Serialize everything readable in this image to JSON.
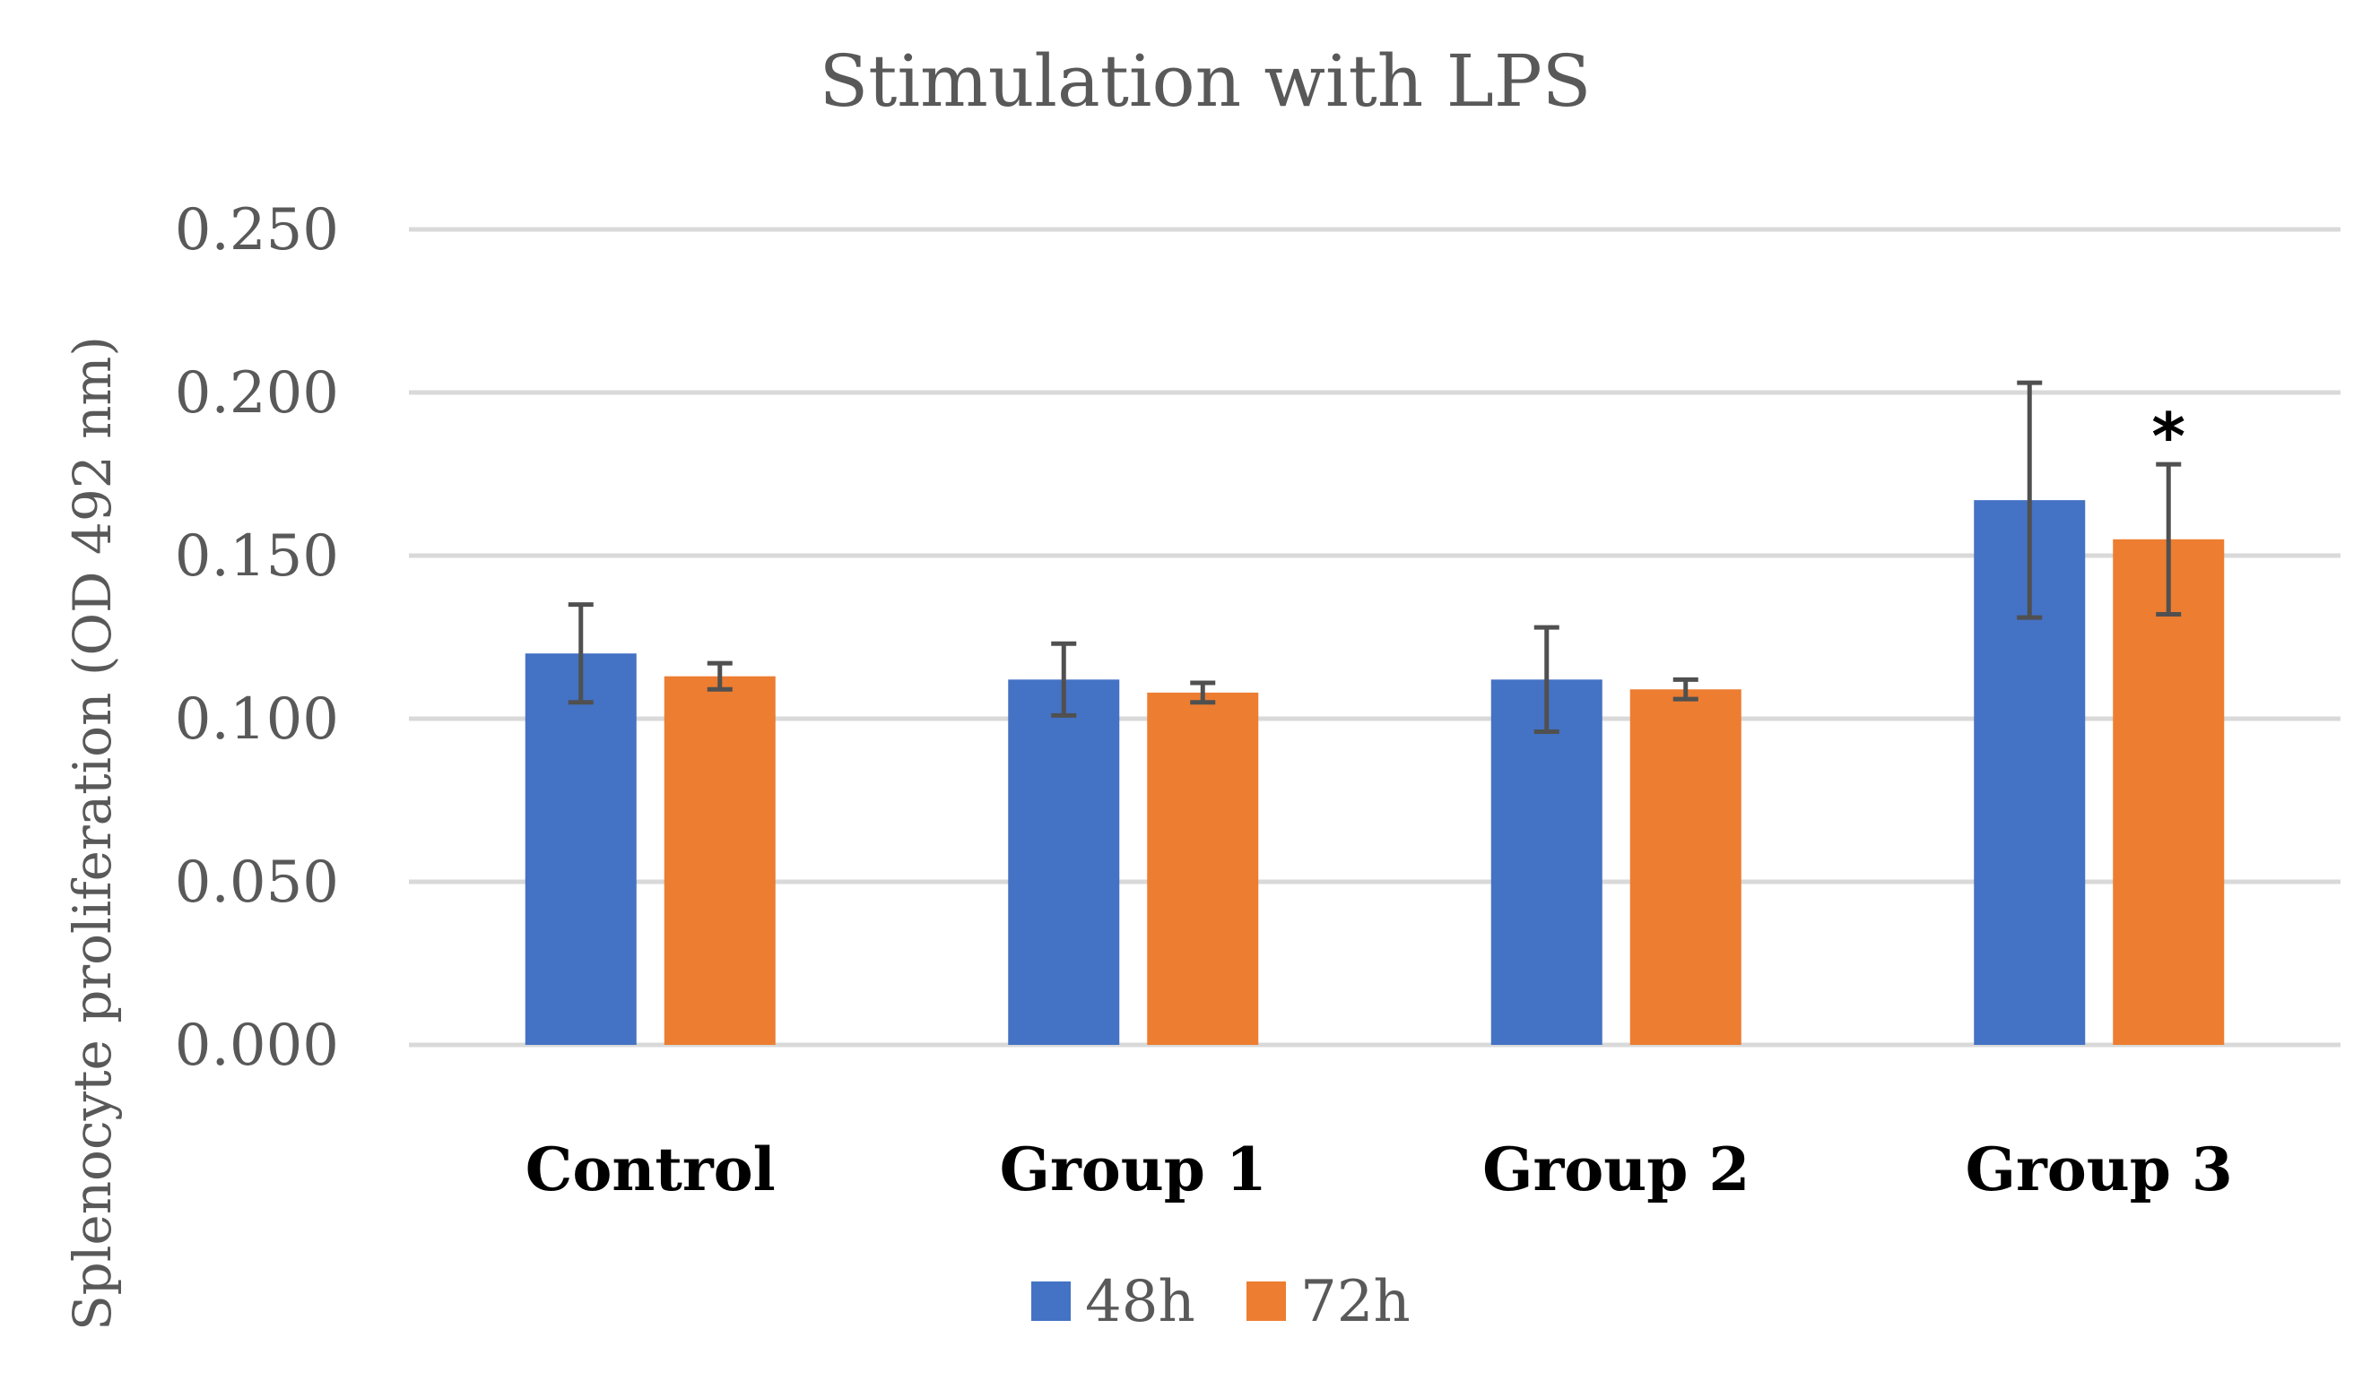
{
  "chart_data": {
    "type": "bar",
    "title": "Stimulation with LPS",
    "xlabel": "",
    "ylabel": "Splenocyte proliferation (OD 492 nm)",
    "categories": [
      "Control",
      "Group 1",
      "Group 2",
      "Group 3"
    ],
    "series": [
      {
        "name": "48h",
        "color": "#4472c4",
        "values": [
          0.12,
          0.112,
          0.112,
          0.167
        ],
        "errors": [
          0.015,
          0.011,
          0.016,
          0.036
        ]
      },
      {
        "name": "72h",
        "color": "#ed7d31",
        "values": [
          0.113,
          0.108,
          0.109,
          0.155
        ],
        "errors": [
          0.004,
          0.003,
          0.003,
          0.023
        ]
      }
    ],
    "ylim": [
      0,
      0.25
    ],
    "yticks": [
      "0.000",
      "0.050",
      "0.100",
      "0.150",
      "0.200",
      "0.250"
    ],
    "grid": true,
    "legend_position": "bottom",
    "annotations": [
      {
        "text": "*",
        "category": "Group 3",
        "series": "72h"
      }
    ]
  }
}
